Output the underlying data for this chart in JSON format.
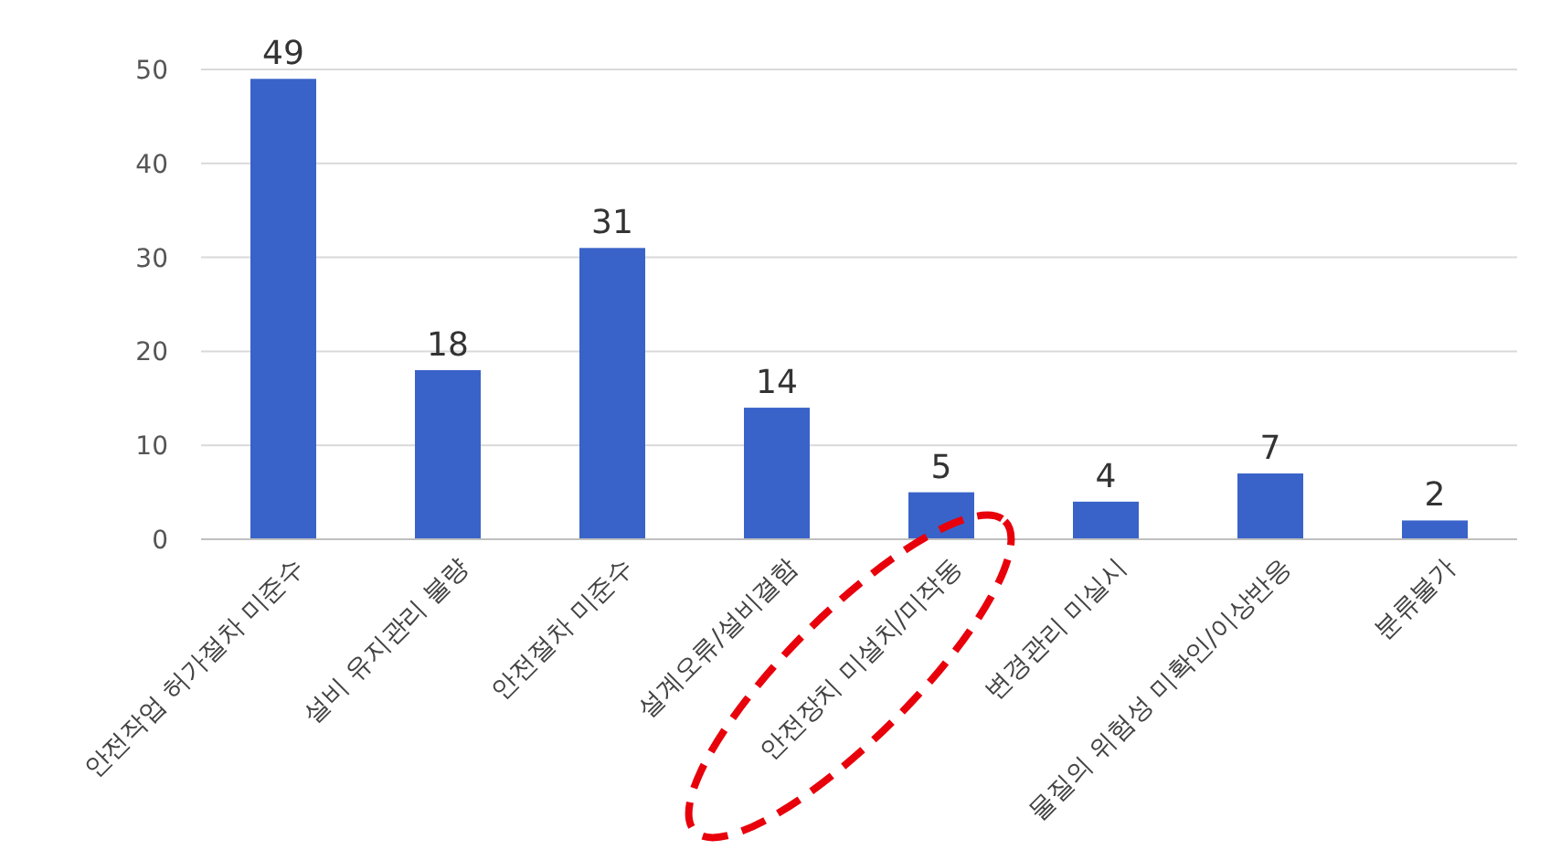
{
  "chart_data": {
    "type": "bar",
    "categories": [
      "안전작업 허가절차 미준수",
      "설비 유지관리 불량",
      "안전절차 미준수",
      "설계오류/설비결함",
      "안전장치 미설치/미작동",
      "변경관리 미실시",
      "물질의 위험성 미확인/이상반응",
      "분류불가"
    ],
    "values": [
      49,
      18,
      31,
      14,
      5,
      4,
      7,
      2
    ],
    "color": "#3a63c9",
    "ylim": [
      0,
      50
    ],
    "yticks": [
      0,
      10,
      20,
      30,
      40,
      50
    ],
    "grid": "y",
    "data_labels": true
  }
}
